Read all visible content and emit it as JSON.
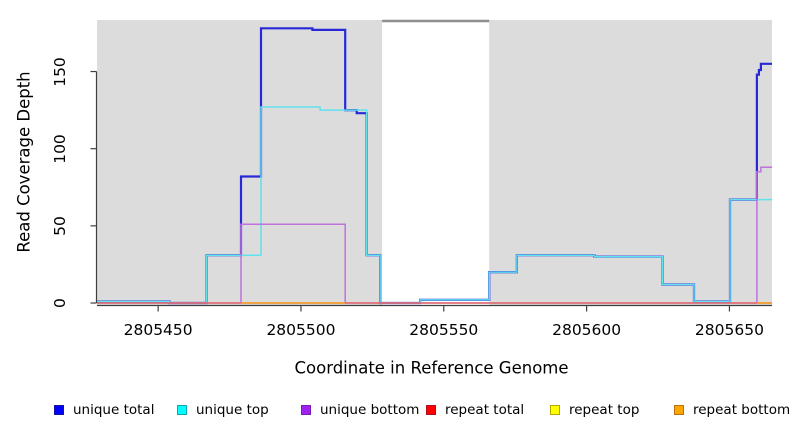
{
  "chart_data": {
    "type": "line",
    "subtype": "step-coverage",
    "title": "",
    "xlabel": "Coordinate in Reference Genome",
    "ylabel": "Read Coverage Depth",
    "plot_bg_color": "#dcdcdc",
    "grid": false,
    "x_axis": {
      "min": 2805428.6,
      "max": 2805664.9,
      "ticks": [
        2805450,
        2805500,
        2805550,
        2805600,
        2805650
      ]
    },
    "y_axis": {
      "min": 0,
      "max": 183.4,
      "ticks": [
        0,
        50,
        100,
        150
      ]
    },
    "masked_region": {
      "x0": 2805528.4,
      "x1": 2805565.9,
      "fill": "#ffffff",
      "top_border_color": "#8e8e8e"
    },
    "axis_color": "#3f3f3f",
    "series": [
      {
        "label": "unique total",
        "line_color": "#2828d8",
        "legend_fill": "#0000ff",
        "legend_border": "#1515a0",
        "width": 2.2,
        "z": 0,
        "paths": [
          [
            [
              2805428.6,
              1
            ],
            [
              2805454,
              1
            ],
            [
              2805454,
              0
            ],
            [
              2805467,
              0
            ],
            [
              2805467,
              31
            ],
            [
              2805479,
              31
            ],
            [
              2805479,
              82
            ],
            [
              2805486,
              82
            ],
            [
              2805486,
              178
            ],
            [
              2805504,
              178
            ],
            [
              2805504,
              177
            ],
            [
              2805515.5,
              177
            ],
            [
              2805515.5,
              125
            ],
            [
              2805519.5,
              125
            ],
            [
              2805519.5,
              123
            ],
            [
              2805523,
              123
            ],
            [
              2805523,
              31
            ],
            [
              2805527.7,
              31
            ],
            [
              2805527.7,
              0
            ],
            [
              2805541.7,
              0
            ],
            [
              2805541.7,
              2
            ],
            [
              2805565.9,
              2
            ],
            [
              2805565.9,
              20
            ],
            [
              2805575.6,
              20
            ],
            [
              2805575.6,
              31
            ],
            [
              2805602.7,
              31
            ],
            [
              2805602.7,
              30
            ],
            [
              2805626.6,
              30
            ],
            [
              2805626.6,
              12
            ],
            [
              2805637.6,
              12
            ],
            [
              2805637.6,
              1
            ],
            [
              2805650.2,
              1
            ],
            [
              2805650.2,
              67
            ],
            [
              2805659.6,
              67
            ],
            [
              2805659.6,
              148
            ],
            [
              2805660.3,
              148
            ],
            [
              2805660.3,
              151
            ],
            [
              2805661,
              151
            ],
            [
              2805661,
              155
            ],
            [
              2805664.9,
              155
            ]
          ]
        ]
      },
      {
        "label": "unique top",
        "line_color": "#62e2ee",
        "legend_fill": "#00ffff",
        "legend_border": "#0aa8b8",
        "width": 1.5,
        "z": 1,
        "paths": [
          [
            [
              2805428.6,
              1
            ],
            [
              2805454,
              1
            ],
            [
              2805454,
              0
            ],
            [
              2805467,
              0
            ],
            [
              2805467,
              31
            ],
            [
              2805486,
              31
            ],
            [
              2805486,
              127
            ],
            [
              2805506.7,
              127
            ],
            [
              2805506.7,
              125
            ],
            [
              2805523,
              125
            ],
            [
              2805523,
              31
            ],
            [
              2805527.7,
              31
            ],
            [
              2805527.7,
              0
            ],
            [
              2805541.7,
              0
            ],
            [
              2805541.7,
              2
            ],
            [
              2805565.9,
              2
            ],
            [
              2805565.9,
              20
            ],
            [
              2805575.6,
              20
            ],
            [
              2805575.6,
              31
            ],
            [
              2805602.7,
              31
            ],
            [
              2805602.7,
              30
            ],
            [
              2805626.6,
              30
            ],
            [
              2805626.6,
              12
            ],
            [
              2805637.6,
              12
            ],
            [
              2805637.6,
              1
            ],
            [
              2805650.2,
              1
            ],
            [
              2805650.2,
              67
            ],
            [
              2805664.9,
              67
            ]
          ]
        ]
      },
      {
        "label": "unique bottom",
        "line_color": "#be72dc",
        "legend_fill": "#a020f0",
        "legend_border": "#7a1fb8",
        "width": 1.5,
        "z": 2,
        "paths": [
          [
            [
              2805428.6,
              0
            ],
            [
              2805479,
              0
            ],
            [
              2805479,
              51
            ],
            [
              2805515.5,
              51
            ],
            [
              2805515.5,
              0
            ],
            [
              2805659.6,
              0
            ],
            [
              2805659.6,
              85
            ],
            [
              2805661,
              85
            ],
            [
              2805661,
              88
            ],
            [
              2805664.9,
              88
            ]
          ]
        ]
      },
      {
        "label": "repeat total",
        "line_color": "#e25673",
        "legend_fill": "#ff0000",
        "legend_border": "#b01020",
        "width": 1.3,
        "z": 4,
        "paths": [
          [
            [
              2805428.6,
              0
            ],
            [
              2805664.9,
              0
            ]
          ]
        ]
      },
      {
        "label": "repeat top",
        "line_color": "#ffff00",
        "legend_fill": "#ffff00",
        "legend_border": "#b8a800",
        "width": 1.2,
        "z": 3,
        "paths": [
          [
            [
              2805428.6,
              0
            ],
            [
              2805664.9,
              0
            ]
          ]
        ]
      },
      {
        "label": "repeat bottom",
        "line_color": "#f49b2a",
        "legend_fill": "#ffa500",
        "legend_border": "#b87010",
        "width": 1.6,
        "z": 5,
        "paths": [
          [
            [
              2805479,
              0
            ],
            [
              2805515.5,
              0
            ]
          ],
          [
            [
              2805659.6,
              0
            ],
            [
              2805664.9,
              0
            ]
          ]
        ]
      }
    ],
    "legend_position": "bottom"
  }
}
